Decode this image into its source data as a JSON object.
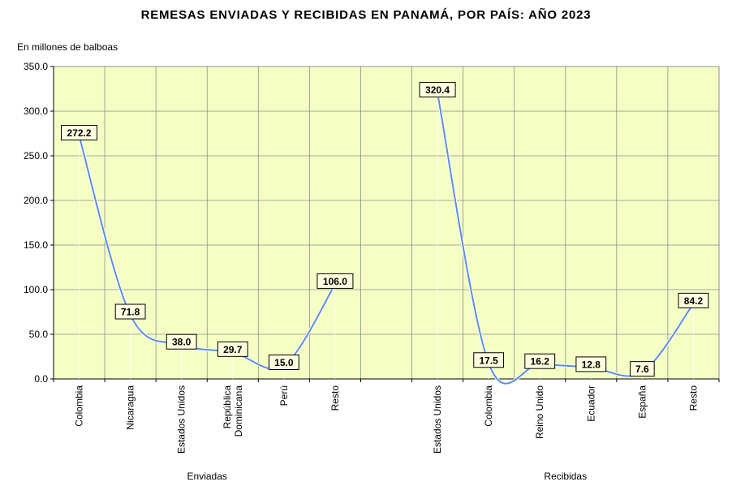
{
  "chart_data": {
    "type": "line",
    "title": "REMESAS ENVIADAS Y RECIBIDAS EN PANAMÁ, POR PAÍS: AÑO 2023",
    "ylabel": "En millones de balboas",
    "ylim": [
      0,
      350
    ],
    "yticks": [
      "0.0",
      "50.0",
      "100.0",
      "150.0",
      "200.0",
      "250.0",
      "300.0",
      "350.0"
    ],
    "grid": true,
    "colors": {
      "line": "#5b8fd9",
      "plot_bg": "#f5ffc4",
      "grid": "#8c8c8c"
    },
    "groups": [
      {
        "name": "Enviadas",
        "categories": [
          "Colombia",
          "Nicaragua",
          "Estados  Unidos",
          "República Dominicana",
          "Perú",
          "Resto"
        ],
        "values": [
          272.2,
          71.8,
          38.0,
          29.7,
          15.0,
          106.0
        ],
        "labels": [
          "272.2",
          "71.8",
          "38.0",
          "29.7",
          "15.0",
          "106.0"
        ]
      },
      {
        "name": "Recibidas",
        "categories": [
          "Estados  Unidos",
          "Colombia",
          "Reino  Unido",
          "Ecuador",
          "España",
          "Resto"
        ],
        "values": [
          320.4,
          17.5,
          16.2,
          12.8,
          7.6,
          84.2
        ],
        "labels": [
          "320.4",
          "17.5",
          "16.2",
          "12.8",
          "7.6",
          "84.2"
        ]
      }
    ]
  }
}
